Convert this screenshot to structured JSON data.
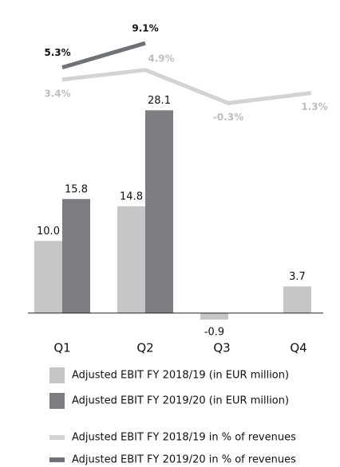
{
  "chart_data": {
    "type": "bar",
    "categories": [
      "Q1",
      "Q2",
      "Q3",
      "Q4"
    ],
    "ylim": [
      -2,
      32
    ],
    "y2lim": [
      -4,
      12
    ],
    "series": [
      {
        "name": "Adjusted EBIT FY 2018/19 (in EUR million)",
        "type": "bar",
        "color": "#c6c6c6",
        "values": [
          10,
          14.8,
          -0.9,
          3.7
        ],
        "value_labels": [
          "10.0",
          "14.8",
          "-0.9",
          "3.7"
        ]
      },
      {
        "name": "Adjusted EBIT FY 2019/20 (in EUR million)",
        "type": "bar",
        "color": "#7b7d81",
        "values": [
          15.8,
          28.1,
          null,
          null
        ],
        "value_labels": [
          "15.8",
          "28.1",
          null,
          null
        ]
      },
      {
        "name": "Adjusted EBIT FY 2018/19 in % of revenues",
        "type": "line",
        "axis": "y2",
        "color": "#d3d3d3",
        "values": [
          3.4,
          4.9,
          -0.3,
          1.3
        ],
        "value_labels": [
          "3.4%",
          "4.9%",
          "-0.3%",
          "1.3%"
        ]
      },
      {
        "name": "Adjusted EBIT FY 2019/20 in % of revenues",
        "type": "line",
        "axis": "y2",
        "color": "#6e7175",
        "values": [
          5.3,
          9.1,
          null,
          null
        ],
        "value_labels": [
          "5.3%",
          "9.1%",
          null,
          null
        ]
      }
    ]
  }
}
